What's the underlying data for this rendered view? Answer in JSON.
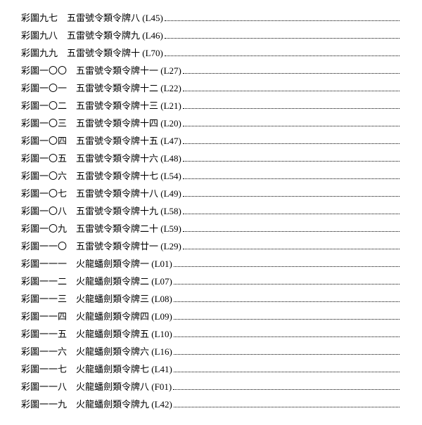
{
  "entries": [
    {
      "label": "彩圖九七",
      "gap": "　",
      "title": "五雷號令類令牌八 (L45) "
    },
    {
      "label": "彩圖九八",
      "gap": "　",
      "title": "五雷號令類令牌九 (L46) "
    },
    {
      "label": "彩圖九九",
      "gap": "　",
      "title": "五雷號令類令牌十 (L70) "
    },
    {
      "label": "彩圖一〇〇",
      "gap": "　",
      "title": "五雷號令類令牌十一 (L27)"
    },
    {
      "label": "彩圖一〇一",
      "gap": "　",
      "title": "五雷號令類令牌十二 (L22)"
    },
    {
      "label": "彩圖一〇二",
      "gap": "　",
      "title": "五雷號令類令牌十三 (L21)"
    },
    {
      "label": "彩圖一〇三",
      "gap": "　",
      "title": "五雷號令類令牌十四 (L20)"
    },
    {
      "label": "彩圖一〇四",
      "gap": "　",
      "title": "五雷號令類令牌十五 (L47)"
    },
    {
      "label": "彩圖一〇五",
      "gap": "　",
      "title": "五雷號令類令牌十六 (L48)"
    },
    {
      "label": "彩圖一〇六",
      "gap": "　",
      "title": "五雷號令類令牌十七 (L54)"
    },
    {
      "label": "彩圖一〇七",
      "gap": "　",
      "title": "五雷號令類令牌十八 (L49)"
    },
    {
      "label": "彩圖一〇八",
      "gap": "　",
      "title": "五雷號令類令牌十九 (L58)"
    },
    {
      "label": "彩圖一〇九",
      "gap": "　",
      "title": "五雷號令類令牌二十 (L59)"
    },
    {
      "label": "彩圖一一〇",
      "gap": "　",
      "title": "五雷號令類令牌廿一 (L29)"
    },
    {
      "label": "彩圖一一一",
      "gap": "　",
      "title": "火龍蟠劍類令牌一 (L01)"
    },
    {
      "label": "彩圖一一二",
      "gap": "　",
      "title": "火龍蟠劍類令牌二 (L07)"
    },
    {
      "label": "彩圖一一三",
      "gap": "　",
      "title": "火龍蟠劍類令牌三 (L08)"
    },
    {
      "label": "彩圖一一四",
      "gap": "　",
      "title": "火龍蟠劍類令牌四 (L09)"
    },
    {
      "label": "彩圖一一五",
      "gap": "　",
      "title": "火龍蟠劍類令牌五 (L10)"
    },
    {
      "label": "彩圖一一六",
      "gap": "　",
      "title": "火龍蟠劍類令牌六 (L16)"
    },
    {
      "label": "彩圖一一七",
      "gap": "　",
      "title": "火龍蟠劍類令牌七 (L41)"
    },
    {
      "label": "彩圖一一八",
      "gap": "　",
      "title": "火龍蟠劍類令牌八 (F01)"
    },
    {
      "label": "彩圖一一九",
      "gap": "　",
      "title": "火龍蟠劍類令牌九 (L42)"
    }
  ]
}
